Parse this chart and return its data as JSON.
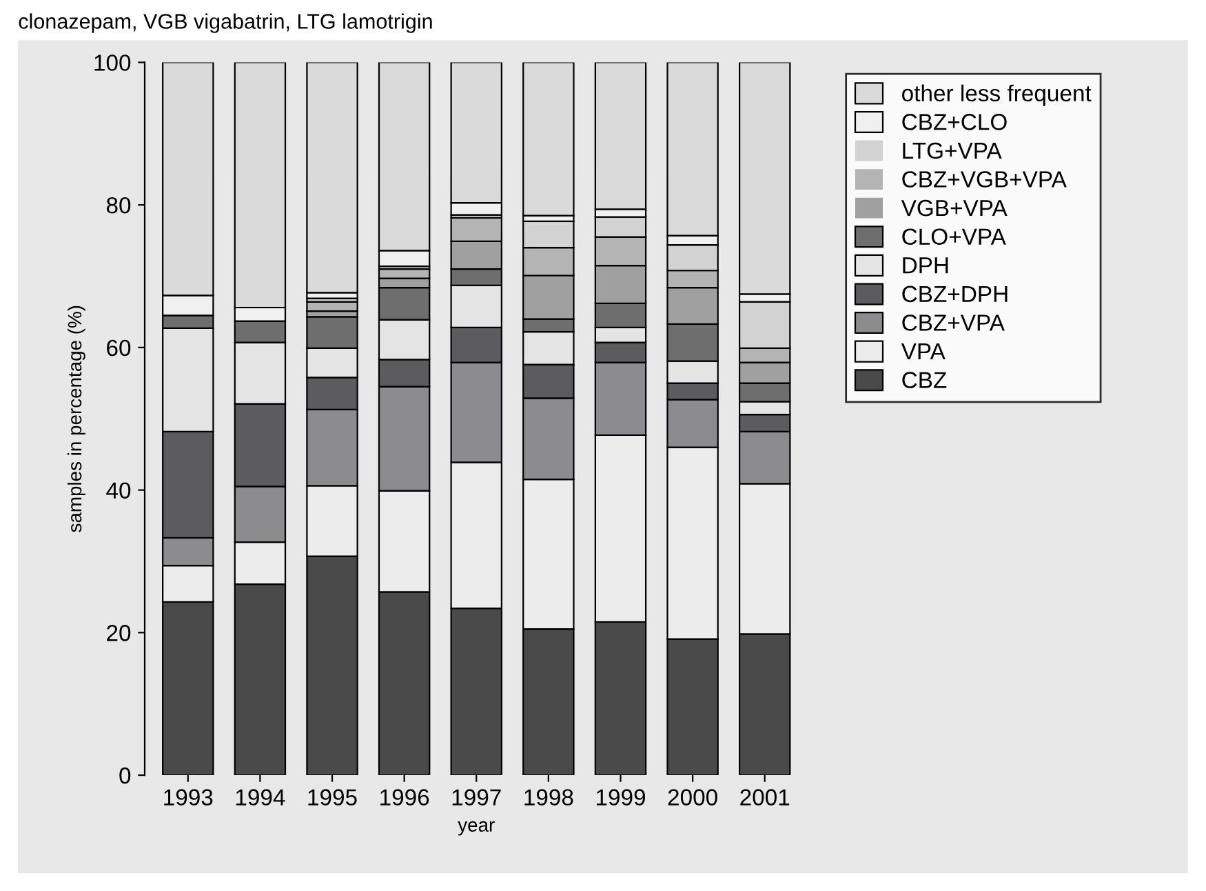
{
  "chart_data": {
    "type": "bar",
    "stacked": true,
    "xlabel": "year",
    "ylabel": "samples in percentage (%)",
    "annotations": [
      "clonazepam, VGB vigabatrin, LTG lamotrigin"
    ],
    "categories": [
      "1993",
      "1994",
      "1995",
      "1996",
      "1997",
      "1998",
      "1999",
      "2000",
      "2001"
    ],
    "ylim": [
      0,
      100
    ],
    "yticks": [
      0,
      20,
      40,
      60,
      80,
      100
    ],
    "grid": false,
    "legend": "right",
    "series": [
      {
        "name": "CBZ",
        "color": "#4a4a4a",
        "values": [
          24.3,
          26.8,
          30.7,
          25.7,
          23.4,
          20.5,
          21.5,
          19.1,
          19.8
        ]
      },
      {
        "name": "VPA",
        "color": "#ececec",
        "values": [
          5.1,
          5.9,
          9.9,
          14.2,
          20.5,
          21.0,
          26.2,
          26.9,
          21.1
        ]
      },
      {
        "name": "CBZ+VPA",
        "color": "#8c8c8f",
        "values": [
          3.9,
          7.8,
          10.7,
          14.6,
          14.0,
          11.4,
          10.2,
          6.7,
          7.3
        ]
      },
      {
        "name": "CBZ+DPH",
        "color": "#5c5c5e",
        "values": [
          14.9,
          11.6,
          4.5,
          3.8,
          4.9,
          4.7,
          2.8,
          2.3,
          2.4
        ]
      },
      {
        "name": "DPH",
        "color": "#e4e4e4",
        "values": [
          14.5,
          8.6,
          4.1,
          5.6,
          5.9,
          4.6,
          2.1,
          3.1,
          1.8
        ]
      },
      {
        "name": "CLO+VPA",
        "color": "#6e6e6e",
        "values": [
          1.8,
          3.0,
          4.4,
          4.5,
          2.3,
          1.8,
          3.4,
          5.2,
          2.6
        ]
      },
      {
        "name": "VGB+VPA",
        "color": "#a0a0a0",
        "values": [
          0,
          0,
          0.8,
          1.3,
          3.9,
          6.1,
          5.3,
          5.1,
          2.9
        ]
      },
      {
        "name": "CBZ+VGB+VPA",
        "color": "#b4b4b4",
        "values": [
          0,
          0,
          1.3,
          1.3,
          3.3,
          3.9,
          4.0,
          2.4,
          2.0
        ]
      },
      {
        "name": "LTG+VPA",
        "color": "#d2d2d2",
        "values": [
          0,
          0,
          0.5,
          0.4,
          0.4,
          3.7,
          2.8,
          3.6,
          6.5
        ]
      },
      {
        "name": "CBZ+CLO",
        "color": "#f0f0f0",
        "values": [
          2.8,
          1.9,
          0.8,
          2.2,
          1.7,
          0.8,
          1.1,
          1.3,
          1.1
        ]
      },
      {
        "name": "other less frequent",
        "color": "#dadada",
        "values": [
          32.7,
          34.4,
          32.3,
          26.4,
          19.7,
          21.5,
          20.6,
          24.3,
          32.5
        ]
      }
    ]
  }
}
